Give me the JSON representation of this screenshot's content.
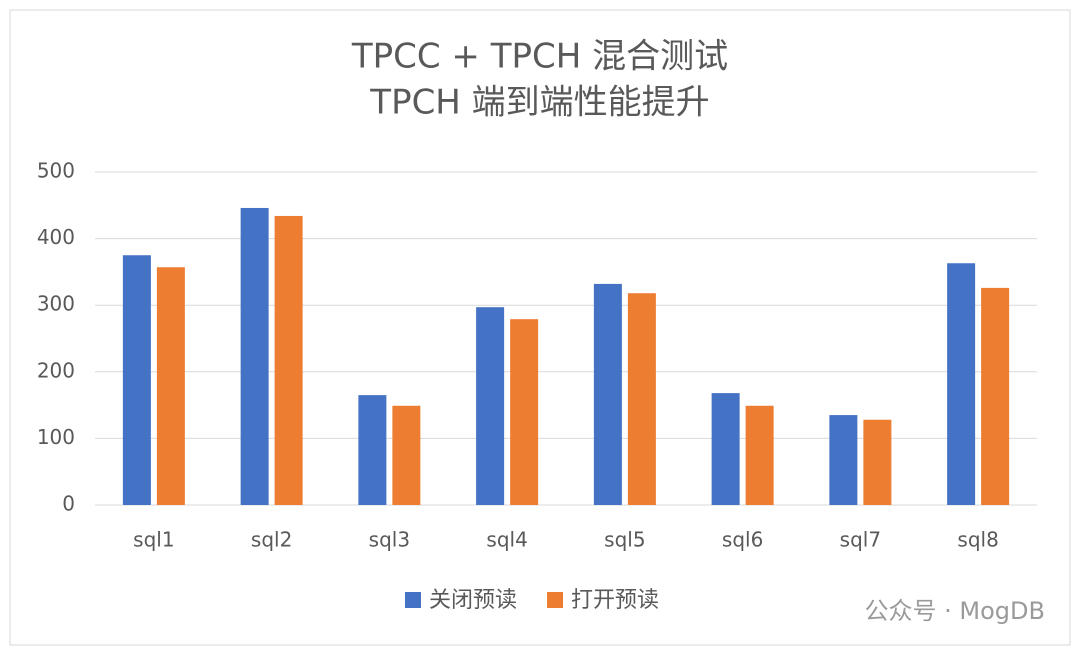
{
  "chart_data": {
    "type": "bar",
    "title": [
      "TPCC + TPCH 混合测试",
      "TPCH 端到端性能提升"
    ],
    "categories": [
      "sql1",
      "sql2",
      "sql3",
      "sql4",
      "sql5",
      "sql6",
      "sql7",
      "sql8"
    ],
    "series": [
      {
        "name": "关闭预读",
        "color": "#4472c4",
        "values": [
          375,
          446,
          165,
          297,
          332,
          168,
          135,
          363
        ]
      },
      {
        "name": "打开预读",
        "color": "#ed7d31",
        "values": [
          357,
          434,
          149,
          279,
          318,
          149,
          128,
          326
        ]
      }
    ],
    "ylim": [
      0,
      500
    ],
    "yticks": [
      0,
      100,
      200,
      300,
      400,
      500
    ],
    "grid": true,
    "legend": "bottom",
    "watermark": "公众号 · MogDB"
  }
}
